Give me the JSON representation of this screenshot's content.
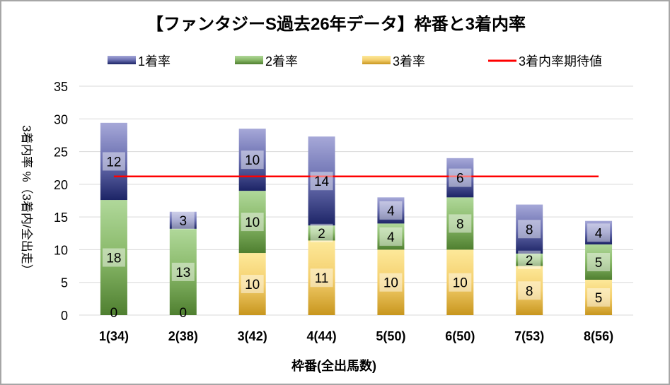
{
  "chart_data": {
    "type": "bar",
    "stacked": true,
    "title": "【ファンタジーS過去26年データ】枠番と3着内率",
    "xlabel": "枠番(全出馬数)",
    "ylabel": "3着内率 %（3着内/全出走）",
    "ylim": [
      0,
      35
    ],
    "yticks": [
      0,
      5,
      10,
      15,
      20,
      25,
      30,
      35
    ],
    "grid": true,
    "legend_position": "top",
    "categories": [
      "1(34)",
      "2(38)",
      "3(42)",
      "4(44)",
      "5(50)",
      "6(50)",
      "7(53)",
      "8(56)"
    ],
    "series": [
      {
        "name": "3着率",
        "values": [
          0,
          0,
          9.5,
          11.4,
          10,
          10,
          7.5,
          5.4
        ],
        "labels": [
          "0",
          "0",
          "10",
          "11",
          "10",
          "10",
          "8",
          "5"
        ],
        "color": "#e0b640"
      },
      {
        "name": "2着率",
        "values": [
          17.6,
          13.2,
          9.5,
          2.3,
          4,
          8,
          1.9,
          5.4
        ],
        "labels": [
          "18",
          "13",
          "10",
          "2",
          "4",
          "8",
          "2",
          "5"
        ],
        "color": "#6a9a4c"
      },
      {
        "name": "1着率",
        "values": [
          11.8,
          2.6,
          9.5,
          13.6,
          4,
          6,
          7.5,
          3.6
        ],
        "labels": [
          "12",
          "3",
          "10",
          "14",
          "4",
          "6",
          "8",
          "4"
        ],
        "color": "#3b4391"
      }
    ],
    "reference_line": {
      "name": "3着内率期待値",
      "value": 21.2,
      "color": "#ff0000"
    }
  }
}
